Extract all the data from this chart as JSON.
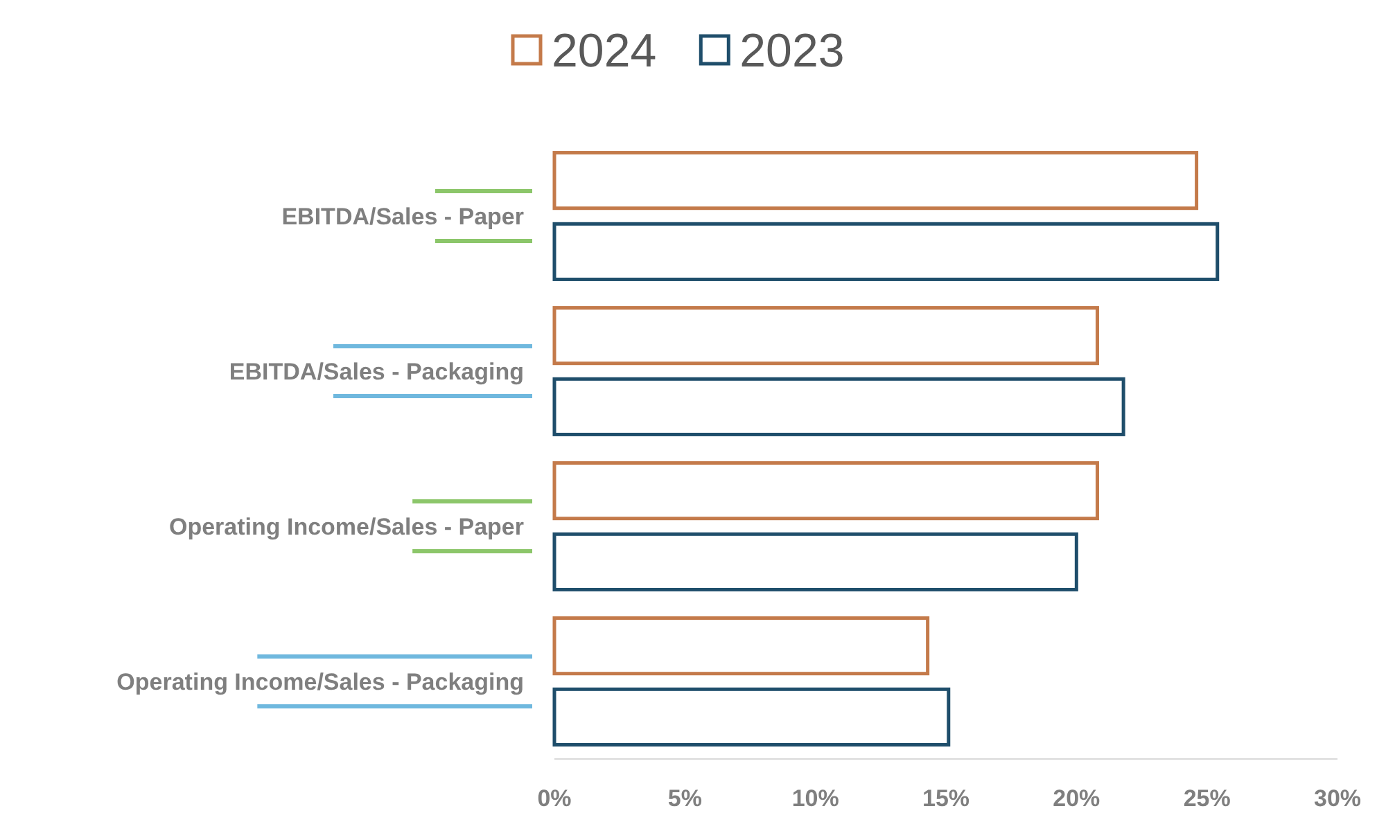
{
  "chart_data": {
    "type": "bar",
    "orientation": "horizontal",
    "categories": [
      "EBITDA/Sales - Paper",
      "EBITDA/Sales - Packaging",
      "Operating Income/Sales - Paper",
      "Operating Income/Sales - Packaging"
    ],
    "series": [
      {
        "name": "2024",
        "color": "#c47a4a",
        "values": [
          24.6,
          20.8,
          20.8,
          14.3
        ]
      },
      {
        "name": "2023",
        "color": "#1f4e6b",
        "values": [
          25.4,
          21.8,
          20.0,
          15.1
        ]
      }
    ],
    "xlim": [
      0,
      30
    ],
    "xticks": [
      {
        "value": 0,
        "label": "0%"
      },
      {
        "value": 5,
        "label": "5%"
      },
      {
        "value": 10,
        "label": "10%"
      },
      {
        "value": 15,
        "label": "15%"
      },
      {
        "value": 20,
        "label": "20%"
      },
      {
        "value": 25,
        "label": "25%"
      },
      {
        "value": 30,
        "label": "30%"
      }
    ],
    "grid": false,
    "legend": "top"
  }
}
